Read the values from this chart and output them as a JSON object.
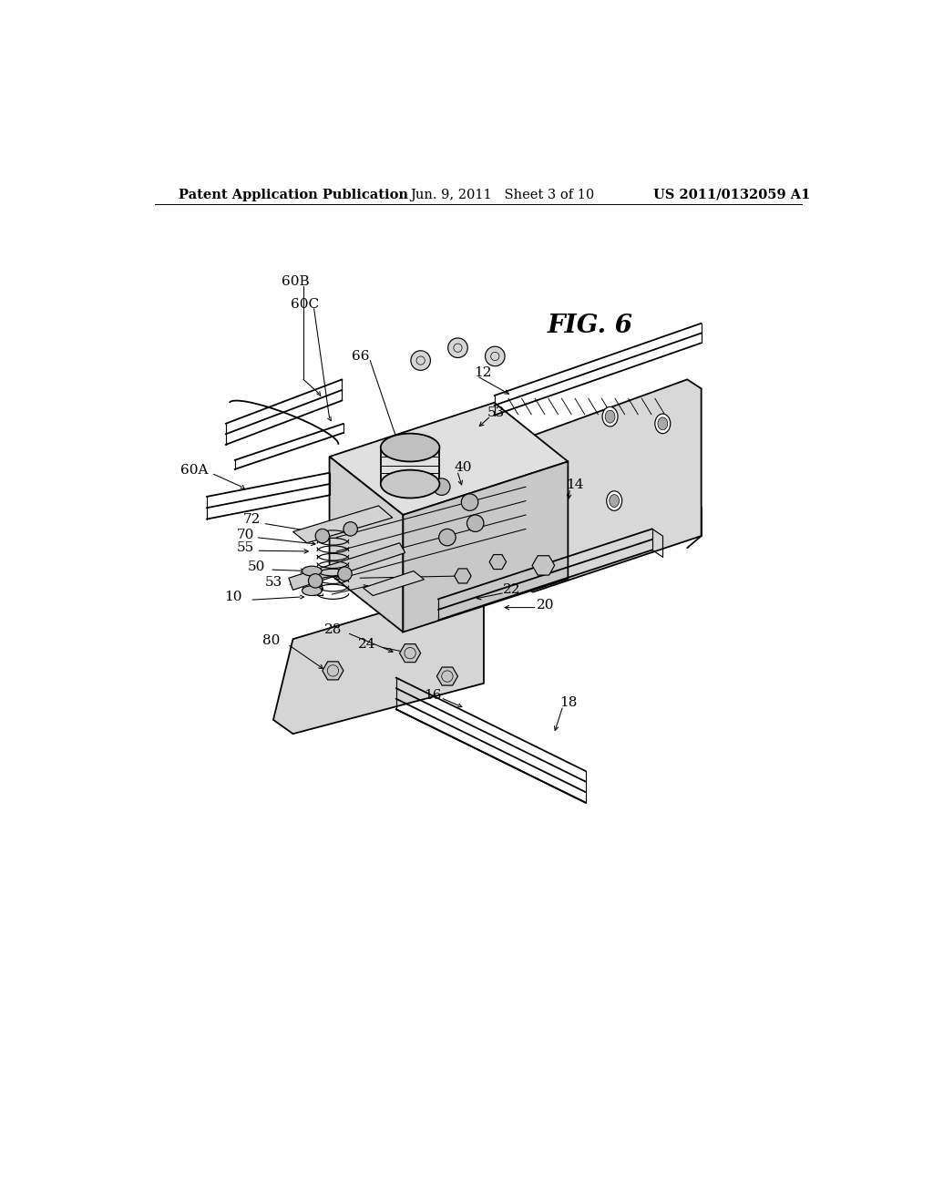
{
  "background_color": "#ffffff",
  "header_left": "Patent Application Publication",
  "header_center": "Jun. 9, 2011   Sheet 3 of 10",
  "header_right": "US 2011/0132059 A1",
  "fig_label": "FIG. 6",
  "header_fontsize": 10.5,
  "label_fontsize": 11,
  "fig_label_fontsize": 20
}
